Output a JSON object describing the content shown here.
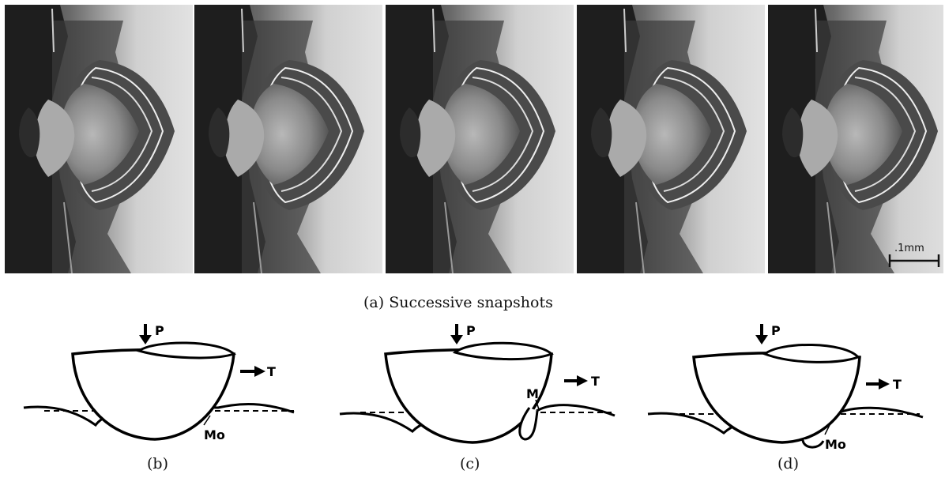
{
  "figure": {
    "strip": {
      "frame_count": 5,
      "scale_label": ".1mm"
    },
    "caption_a": "(a) Successive snapshots",
    "diagrams": [
      {
        "id": "b",
        "caption": "(b)",
        "load_label": "P",
        "traction_label": "T",
        "contact_label": "Mo"
      },
      {
        "id": "c",
        "caption": "(c)",
        "load_label": "P",
        "traction_label": "T",
        "contact_label": "M"
      },
      {
        "id": "d",
        "caption": "(d)",
        "load_label": "P",
        "traction_label": "T",
        "contact_label": "Mo"
      }
    ]
  }
}
